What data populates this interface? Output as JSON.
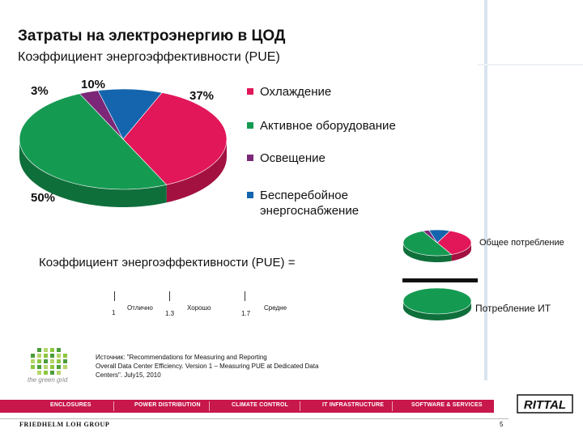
{
  "title": "Затраты на электроэнергию в ЦОД",
  "subtitle": "Коэффициент энергоэффективности (PUE)",
  "chart_data": [
    {
      "type": "pie",
      "categories": [
        "Охлаждение",
        "Активное оборудование",
        "Освещение",
        "Бесперебойное энергоснабжение"
      ],
      "values": [
        37,
        50,
        3,
        10
      ],
      "value_labels": [
        "37%",
        "50%",
        "3%",
        "10%"
      ],
      "colors": [
        "#e2175a",
        "#159a52",
        "#7c2778",
        "#1465ad"
      ],
      "legend_position": "right"
    },
    {
      "type": "pie",
      "label": "Общее потребление",
      "values": [
        37,
        50,
        3,
        10
      ],
      "colors": [
        "#e2175a",
        "#159a52",
        "#7c2778",
        "#1465ad"
      ]
    },
    {
      "type": "pie",
      "label": "Потребление ИТ",
      "values": [
        100
      ],
      "colors": [
        "#159a52"
      ]
    }
  ],
  "colors": {
    "cooling": "#e2175a",
    "equipment": "#159a52",
    "lighting": "#7c2778",
    "ups": "#1465ad",
    "brand": "#c8174a"
  },
  "pue": {
    "formula_label": "Коэффициент энергоэффективности (PUE) =",
    "numerator_label": "Общее потребление",
    "denominator_label": "Потребление ИТ",
    "scale": [
      {
        "value": "1",
        "label": "Отлично"
      },
      {
        "value": "1.3",
        "label": "Хорошо"
      },
      {
        "value": "1.7",
        "label": "Средне"
      }
    ]
  },
  "source": {
    "logo_text": "the green grid",
    "logo_icon": "green-grid-logo-icon",
    "line1": "Источник: \"Recommendations for Measuring and Reporting",
    "line2": "Overall Data Center Efficiency. Version 1 – Measuring PUE at Dedicated Data",
    "line3": "Centers\". July15, 2010"
  },
  "footer": {
    "nav": [
      "ENCLOSURES",
      "POWER DISTRIBUTION",
      "CLIMATE CONTROL",
      "IT INFRASTRUCTURE",
      "SOFTWARE & SERVICES"
    ],
    "company": "FRIEDHELM LOH GROUP",
    "brand": "RITTAL",
    "page": "5"
  }
}
